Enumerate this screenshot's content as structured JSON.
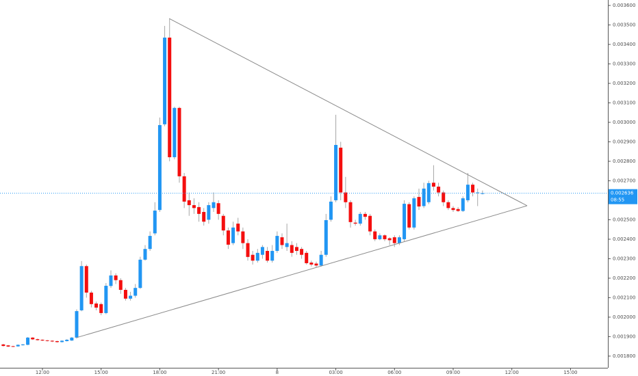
{
  "chart_data": {
    "type": "candlestick",
    "x": [
      10,
      10.25,
      10.5,
      10.75,
      11,
      11.25,
      11.5,
      11.75,
      12,
      12.25,
      12.5,
      12.75,
      13,
      13.25,
      13.5,
      13.75,
      14,
      14.25,
      14.5,
      14.75,
      15,
      15.25,
      15.5,
      15.75,
      16,
      16.25,
      16.5,
      16.75,
      17,
      17.25,
      17.5,
      17.75,
      18,
      18.25,
      18.5,
      18.75,
      19,
      19.25,
      19.5,
      19.75,
      20,
      20.25,
      20.5,
      20.75,
      21,
      21.25,
      21.5,
      21.75,
      22,
      22.25,
      22.5,
      22.75,
      23,
      23.25,
      23.5,
      23.75,
      24,
      24.25,
      24.5,
      24.75,
      25,
      25.25,
      25.5,
      25.75,
      26,
      26.25,
      26.5,
      26.75,
      27,
      27.25,
      27.5,
      27.75,
      28,
      28.25,
      28.5,
      28.75,
      29,
      29.25,
      29.5,
      29.75,
      30,
      30.25,
      30.5,
      30.75,
      31,
      31.25,
      31.5,
      31.75,
      32,
      32.25,
      32.5,
      32.75,
      33,
      33.25,
      33.5,
      33.75,
      34,
      34.25,
      34.5
    ],
    "open": [
      0.00186,
      0.001855,
      0.001851,
      0.00185,
      0.001856,
      0.001858,
      0.001895,
      0.001887,
      0.001884,
      0.001881,
      0.001879,
      0.001877,
      0.001872,
      0.001877,
      0.00188,
      0.001895,
      0.002035,
      0.002262,
      0.002126,
      0.00207,
      0.002067,
      0.002021,
      0.00216,
      0.002214,
      0.00219,
      0.00214,
      0.002095,
      0.00211,
      0.00215,
      0.002295,
      0.00235,
      0.00243,
      0.00255,
      0.00299,
      0.003435,
      0.002821,
      0.003074,
      0.002723,
      0.0026,
      0.002575,
      0.002565,
      0.00254,
      0.0025,
      0.00256,
      0.002585,
      0.00252,
      0.002445,
      0.00238,
      0.00248,
      0.00244,
      0.00238,
      0.00232,
      0.00229,
      0.00232,
      0.00234,
      0.00229,
      0.00234,
      0.00241,
      0.00236,
      0.00237,
      0.00236,
      0.00235,
      0.00233,
      0.00228,
      0.002275,
      0.002265,
      0.00232,
      0.0025,
      0.0026,
      0.00287,
      0.00264,
      0.00259,
      0.002485,
      0.00248,
      0.00253,
      0.00252,
      0.00244,
      0.0024,
      0.00242,
      0.002405,
      0.00241,
      0.00238,
      0.0024,
      0.00258,
      0.00246,
      0.002617,
      0.00257,
      0.00259,
      0.00269,
      0.00267,
      0.00264,
      0.00259,
      0.00256,
      0.002555,
      0.002545,
      0.0026,
      0.00268,
      0.00264,
      0.002636
    ],
    "high": [
      0.001863,
      0.001857,
      0.001853,
      0.00186,
      0.001862,
      0.001898,
      0.001897,
      0.00189,
      0.001886,
      0.001883,
      0.001881,
      0.001879,
      0.001881,
      0.001887,
      0.001898,
      0.00204,
      0.002288,
      0.00227,
      0.002135,
      0.00208,
      0.002075,
      0.002175,
      0.00224,
      0.002225,
      0.0022,
      0.00215,
      0.00213,
      0.00217,
      0.00231,
      0.00237,
      0.00244,
      0.00259,
      0.003025,
      0.003495,
      0.00353,
      0.00308,
      0.00308,
      0.00274,
      0.00264,
      0.00261,
      0.00259,
      0.00256,
      0.00259,
      0.00264,
      0.0026,
      0.00253,
      0.00246,
      0.00249,
      0.00251,
      0.00246,
      0.0024,
      0.00234,
      0.00235,
      0.00237,
      0.00236,
      0.00237,
      0.00244,
      0.00243,
      0.00248,
      0.00239,
      0.00238,
      0.00236,
      0.00234,
      0.00229,
      0.002285,
      0.00234,
      0.00253,
      0.00262,
      0.003039,
      0.0029,
      0.00272,
      0.0026,
      0.0025,
      0.00254,
      0.00254,
      0.00253,
      0.00245,
      0.00243,
      0.002425,
      0.00241,
      0.00242,
      0.00242,
      0.0026,
      0.00259,
      0.00262,
      0.00266,
      0.00269,
      0.0027,
      0.00278,
      0.00269,
      0.00265,
      0.0026,
      0.00257,
      0.002565,
      0.00262,
      0.00274,
      0.00269,
      0.00266,
      0.00265
    ],
    "low": [
      0.001849,
      0.001846,
      0.001846,
      0.001848,
      0.001854,
      0.001856,
      0.001883,
      0.00188,
      0.001877,
      0.001875,
      0.001872,
      0.001869,
      0.00187,
      0.001875,
      0.001878,
      0.00189,
      0.00203,
      0.0021,
      0.00205,
      0.002035,
      0.00201,
      0.002015,
      0.00215,
      0.00217,
      0.00212,
      0.002085,
      0.002085,
      0.0021,
      0.002145,
      0.00229,
      0.00234,
      0.00242,
      0.00254,
      0.00298,
      0.0028,
      0.00281,
      0.00269,
      0.00256,
      0.00252,
      0.00253,
      0.00249,
      0.00247,
      0.00248,
      0.00254,
      0.0025,
      0.00242,
      0.00235,
      0.00237,
      0.00242,
      0.00235,
      0.00229,
      0.00227,
      0.00228,
      0.0023,
      0.00228,
      0.00228,
      0.00233,
      0.00235,
      0.00234,
      0.00231,
      0.00232,
      0.0023,
      0.00227,
      0.00226,
      0.002255,
      0.00226,
      0.00231,
      0.00249,
      0.00259,
      0.0026,
      0.00256,
      0.00246,
      0.00247,
      0.00247,
      0.0025,
      0.00242,
      0.00239,
      0.002395,
      0.00239,
      0.00237,
      0.00236,
      0.00237,
      0.00239,
      0.00245,
      0.00245,
      0.00255,
      0.00256,
      0.00258,
      0.00265,
      0.00262,
      0.00257,
      0.00255,
      0.00254,
      0.00254,
      0.00254,
      0.00259,
      0.00262,
      0.00257,
      0.00263
    ],
    "close": [
      0.001852,
      0.001849,
      0.001849,
      0.001858,
      0.00186,
      0.001895,
      0.001886,
      0.001882,
      0.00188,
      0.001878,
      0.001875,
      0.001872,
      0.001879,
      0.001884,
      0.001895,
      0.002031,
      0.002262,
      0.002126,
      0.002067,
      0.002049,
      0.002021,
      0.002161,
      0.002214,
      0.00219,
      0.00214,
      0.002095,
      0.00211,
      0.00215,
      0.002295,
      0.00235,
      0.002417,
      0.002547,
      0.002986,
      0.003435,
      0.002821,
      0.003074,
      0.002723,
      0.002593,
      0.002575,
      0.00256,
      0.00253,
      0.00249,
      0.002575,
      0.00259,
      0.00253,
      0.002445,
      0.002372,
      0.00246,
      0.00244,
      0.00238,
      0.002309,
      0.00229,
      0.00233,
      0.00236,
      0.00229,
      0.00234,
      0.002417,
      0.00237,
      0.00238,
      0.00233,
      0.00234,
      0.00232,
      0.002277,
      0.00227,
      0.002265,
      0.00232,
      0.002498,
      0.002593,
      0.002884,
      0.00264,
      0.00259,
      0.002488,
      0.00248,
      0.00253,
      0.002515,
      0.00244,
      0.0024,
      0.00242,
      0.0024,
      0.002395,
      0.00238,
      0.00241,
      0.002582,
      0.00246,
      0.00261,
      0.002568,
      0.00266,
      0.002688,
      0.00267,
      0.00264,
      0.00259,
      0.00256,
      0.00255,
      0.002545,
      0.00261,
      0.00268,
      0.00264,
      0.00264,
      0.002636
    ],
    "up_color": "#2196f3",
    "down_color": "#f40f0f",
    "wick_color": "#a6a6a6",
    "xlim": [
      9.83,
      40.91
    ],
    "xticks": [
      {
        "value": 12,
        "label": "12:00"
      },
      {
        "value": 15,
        "label": "15:00"
      },
      {
        "value": 18,
        "label": "18:00"
      },
      {
        "value": 21,
        "label": "21:00"
      },
      {
        "value": 24,
        "label": "8"
      },
      {
        "value": 27,
        "label": "03:00"
      },
      {
        "value": 30,
        "label": "06:00"
      },
      {
        "value": 33,
        "label": "09:00"
      },
      {
        "value": 36,
        "label": "12:00"
      },
      {
        "value": 39,
        "label": "15:00"
      }
    ],
    "ylim": [
      0.00174,
      0.003628
    ],
    "yticks": [
      {
        "value": 0.0018,
        "label": "0.001800"
      },
      {
        "value": 0.0019,
        "label": "0.001900"
      },
      {
        "value": 0.002,
        "label": "0.002000"
      },
      {
        "value": 0.0021,
        "label": "0.002100"
      },
      {
        "value": 0.0022,
        "label": "0.002200"
      },
      {
        "value": 0.0023,
        "label": "0.002300"
      },
      {
        "value": 0.0024,
        "label": "0.002400"
      },
      {
        "value": 0.0025,
        "label": "0.002500"
      },
      {
        "value": 0.0026,
        "label": "0.002600"
      },
      {
        "value": 0.0027,
        "label": "0.002700"
      },
      {
        "value": 0.0028,
        "label": "0.002800"
      },
      {
        "value": 0.0029,
        "label": "0.002900"
      },
      {
        "value": 0.003,
        "label": "0.003000"
      },
      {
        "value": 0.0031,
        "label": "0.003100"
      },
      {
        "value": 0.0032,
        "label": "0.003200"
      },
      {
        "value": 0.0033,
        "label": "0.003300"
      },
      {
        "value": 0.0034,
        "label": "0.003400"
      },
      {
        "value": 0.0035,
        "label": "0.003500"
      },
      {
        "value": 0.0036,
        "label": "0.003600"
      }
    ],
    "trendlines": [
      {
        "x": [
          18.48,
          36.78
        ],
        "y": [
          0.003533,
          0.002572
        ]
      },
      {
        "x": [
          13.75,
          36.78
        ],
        "y": [
          0.001895,
          0.002572
        ]
      }
    ],
    "trendline_color": "#8a8a8a",
    "last_price": {
      "value": 0.002636,
      "label": "0.002636",
      "countdown": "08:55",
      "color": "#2196f3"
    }
  }
}
